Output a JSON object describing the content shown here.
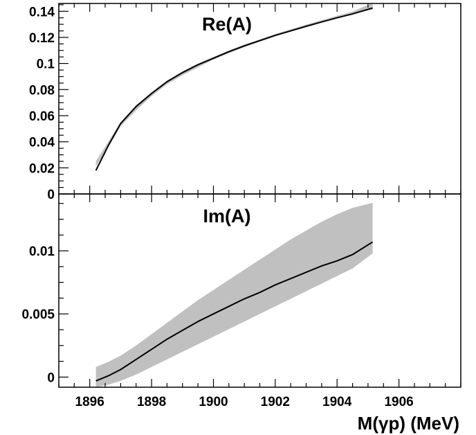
{
  "chart_data": [
    {
      "type": "line",
      "title": "Re(A)",
      "xlim": [
        1895,
        1908
      ],
      "ylim": [
        0,
        0.146
      ],
      "xticks": [
        1896,
        1898,
        1900,
        1902,
        1904,
        1906
      ],
      "yticks": [
        0,
        0.02,
        0.04,
        0.06,
        0.08,
        0.1,
        0.12,
        0.14
      ],
      "ytick_labels": [
        "0",
        "0.02",
        "0.04",
        "0.06",
        "0.08",
        "0.1",
        "0.12",
        "0.14"
      ],
      "band_color": "#c0c0c0",
      "line_color": "#000000",
      "series": [
        {
          "x": [
            1896.2,
            1896.6,
            1897.0,
            1897.5,
            1898.0,
            1898.5,
            1899.0,
            1899.5,
            1900.0,
            1900.5,
            1901.0,
            1901.5,
            1902.0,
            1902.5,
            1903.0,
            1903.5,
            1904.0,
            1904.5,
            1905.15
          ],
          "y": [
            0.018,
            0.037,
            0.054,
            0.067,
            0.077,
            0.086,
            0.093,
            0.099,
            0.104,
            0.109,
            0.1135,
            0.1175,
            0.1215,
            0.125,
            0.1285,
            0.1318,
            0.135,
            0.138,
            0.1425
          ],
          "lower": [
            0.021,
            0.036,
            0.052,
            0.064,
            0.075,
            0.084,
            0.091,
            0.097,
            0.103,
            0.108,
            0.1125,
            0.1168,
            0.1208,
            0.1245,
            0.1282,
            0.1316,
            0.1348,
            0.1378,
            0.1415
          ],
          "upper": [
            0.025,
            0.04,
            0.055,
            0.068,
            0.078,
            0.087,
            0.094,
            0.1,
            0.105,
            0.11,
            0.1145,
            0.1185,
            0.1225,
            0.1262,
            0.1298,
            0.1332,
            0.1365,
            0.1398,
            0.1465
          ]
        }
      ]
    },
    {
      "type": "line",
      "title": "Im(A)",
      "xlim": [
        1895,
        1908
      ],
      "ylim": [
        -0.0008,
        0.0145
      ],
      "xticks": [
        1896,
        1898,
        1900,
        1902,
        1904,
        1906
      ],
      "xtick_labels": [
        "1896",
        "1898",
        "1900",
        "1902",
        "1904",
        "1906"
      ],
      "yticks": [
        0,
        0.005,
        0.01
      ],
      "ytick_labels": [
        "0",
        "0.005",
        "0.01"
      ],
      "xlabel": "M(γp)  (MeV)",
      "band_color": "#c0c0c0",
      "line_color": "#000000",
      "series": [
        {
          "x": [
            1896.2,
            1896.6,
            1897.0,
            1897.5,
            1898.0,
            1898.5,
            1899.0,
            1899.5,
            1900.0,
            1900.5,
            1901.0,
            1901.5,
            1902.0,
            1902.5,
            1903.0,
            1903.5,
            1904.0,
            1904.5,
            1905.15
          ],
          "y": [
            -0.0003,
            0.0001,
            0.0006,
            0.0014,
            0.0022,
            0.003,
            0.0037,
            0.0044,
            0.005,
            0.0056,
            0.0062,
            0.0067,
            0.0073,
            0.0078,
            0.0083,
            0.0088,
            0.0092,
            0.0097,
            0.0107
          ],
          "lower": [
            -0.0008,
            -0.0006,
            -0.0003,
            0.0002,
            0.0008,
            0.0014,
            0.002,
            0.0026,
            0.0032,
            0.0038,
            0.0044,
            0.005,
            0.0056,
            0.0062,
            0.0068,
            0.0074,
            0.008,
            0.0086,
            0.0098
          ],
          "upper": [
            0.0008,
            0.0012,
            0.0017,
            0.0025,
            0.0034,
            0.0043,
            0.0052,
            0.0061,
            0.0069,
            0.0077,
            0.0085,
            0.0093,
            0.0101,
            0.0109,
            0.0116,
            0.0123,
            0.0129,
            0.0134,
            0.0138
          ]
        }
      ]
    }
  ]
}
